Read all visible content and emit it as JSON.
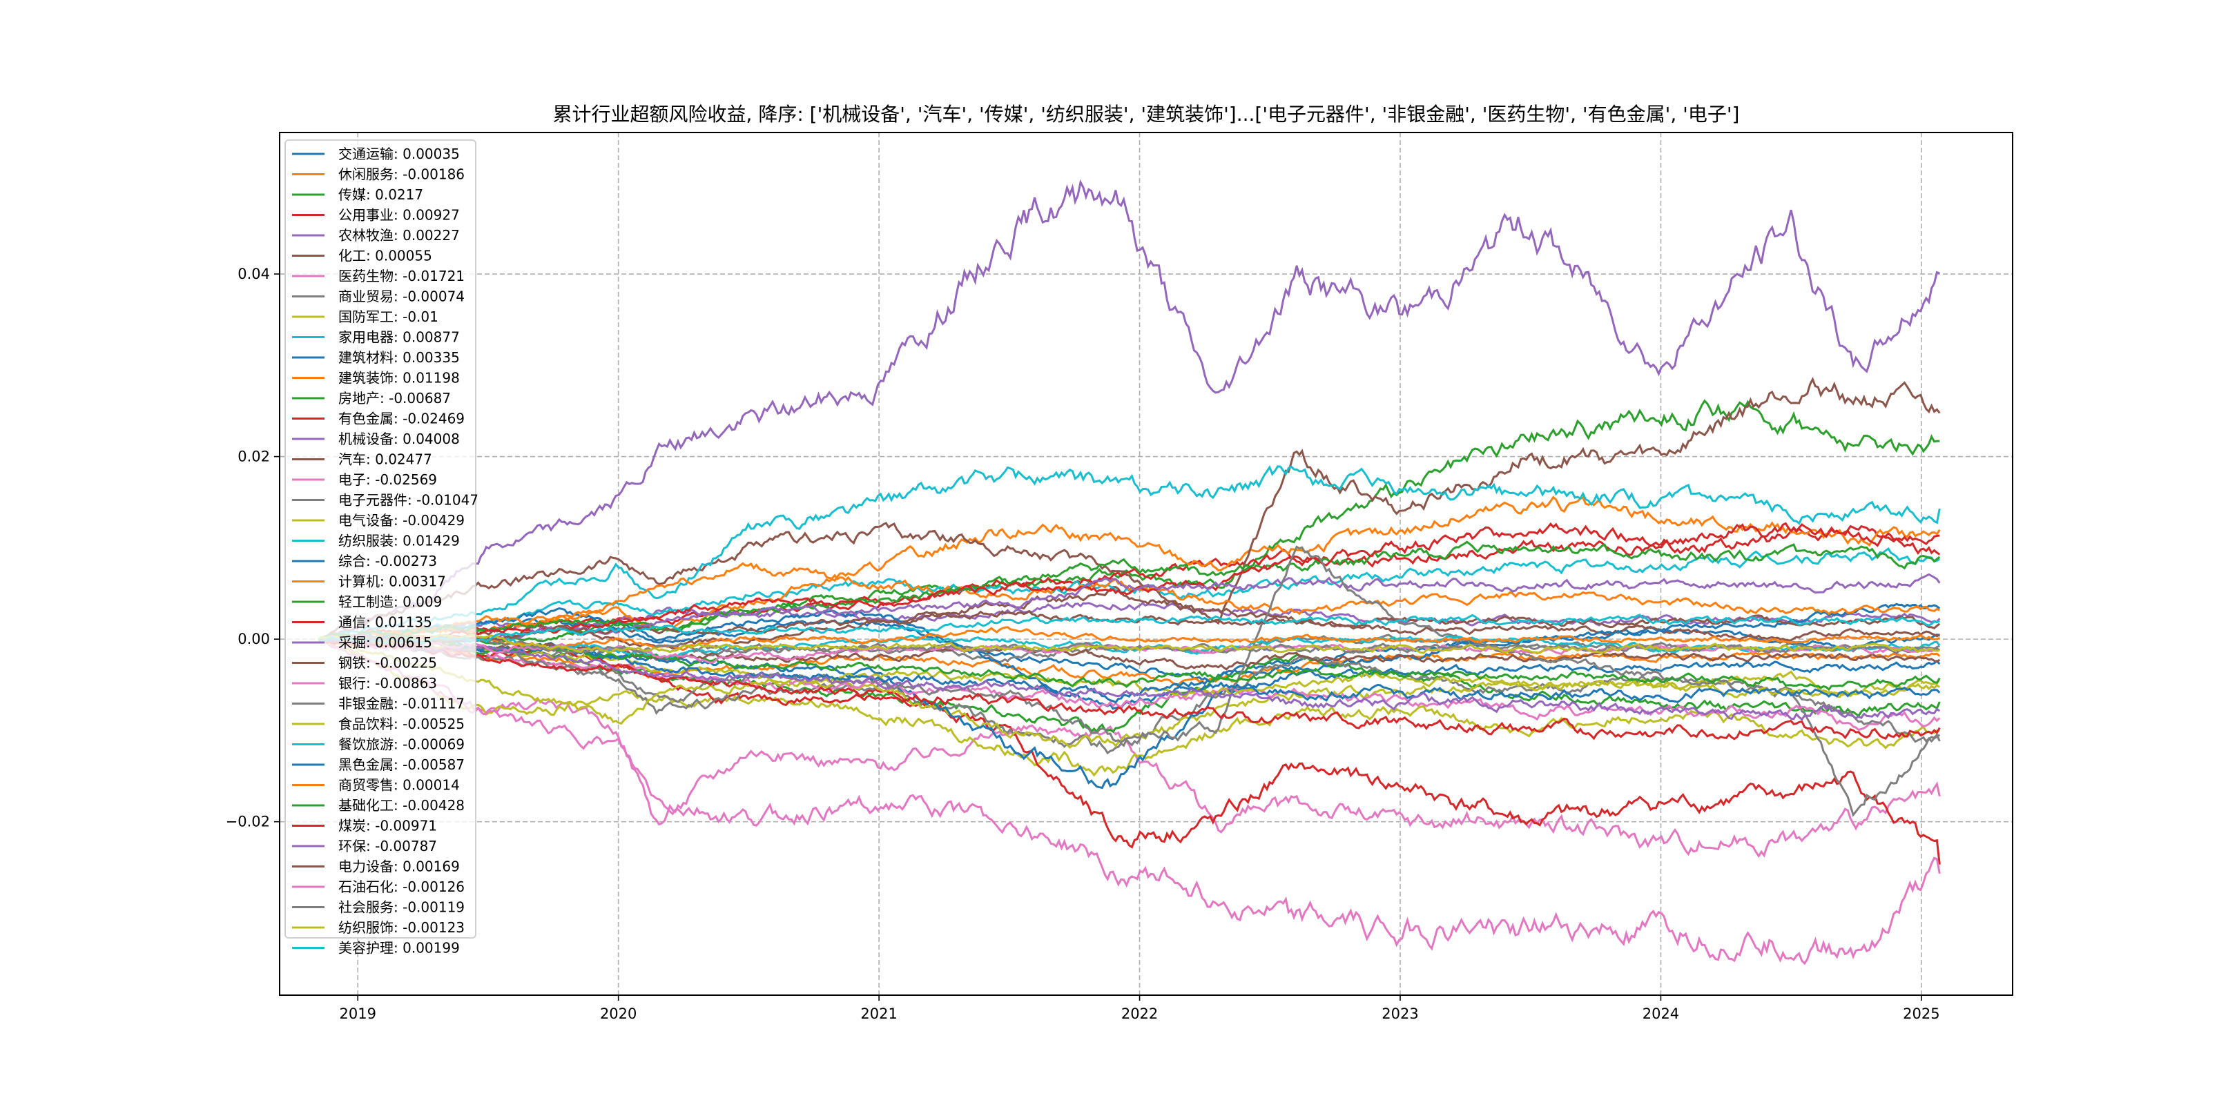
{
  "chart_data": {
    "type": "line",
    "title": "累计行业超额风险收益,  降序: ['机械设备', '汽车', '传媒', '纺织服装', '建筑装饰']...['电子元器件', '非银金融', '医药生物', '有色金属', '电子']",
    "xlabel": "",
    "ylabel": "",
    "xlim": [
      2018.7,
      2025.35
    ],
    "ylim": [
      -0.039,
      0.0555
    ],
    "xticks": [
      2019,
      2020,
      2021,
      2022,
      2023,
      2024,
      2025
    ],
    "xtick_labels": [
      "2019",
      "2020",
      "2021",
      "2022",
      "2023",
      "2024",
      "2025"
    ],
    "yticks": [
      -0.02,
      0.0,
      0.02,
      0.04
    ],
    "ytick_labels": [
      "−0.02",
      "0.00",
      "0.02",
      "0.04"
    ],
    "grid": true,
    "legend_position": "top-left",
    "x": [
      2018.85,
      2019.25,
      2019.5,
      2019.75,
      2020.0,
      2020.15,
      2020.5,
      2021.0,
      2021.5,
      2021.9,
      2022.3,
      2022.6,
      2023.0,
      2023.5,
      2024.0,
      2024.5,
      2024.74,
      2025.07
    ],
    "series": [
      {
        "name": "交通运输",
        "final": "0.00035",
        "color": "#1f77b4",
        "values": [
          0,
          0.001,
          0.001,
          0.002,
          0.001,
          0.0,
          0.001,
          0.002,
          -0.002,
          -0.003,
          -0.004,
          -0.002,
          -0.001,
          0.0,
          0.001,
          0.0,
          -0.001,
          0.00035
        ]
      },
      {
        "name": "休闲服务",
        "final": "-0.00186",
        "color": "#ff7f0e",
        "values": [
          0,
          -0.001,
          -0.002,
          -0.002,
          -0.003,
          -0.004,
          -0.003,
          -0.002,
          -0.003,
          -0.004,
          -0.005,
          -0.003,
          -0.002,
          -0.002,
          -0.002,
          -0.002,
          -0.002,
          -0.00186
        ]
      },
      {
        "name": "传媒",
        "final": "0.0217",
        "color": "#2ca02c",
        "values": [
          0,
          0,
          0,
          0,
          0.002,
          0.001,
          0.003,
          0.005,
          0.006,
          0.007,
          0.006,
          0.012,
          0.016,
          0.022,
          0.025,
          0.024,
          0.021,
          0.0217
        ]
      },
      {
        "name": "公用事业",
        "final": "0.00927",
        "color": "#d62728",
        "values": [
          0,
          0.001,
          0.001,
          0.002,
          0.002,
          0.002,
          0.003,
          0.004,
          0.006,
          0.007,
          0.008,
          0.009,
          0.009,
          0.01,
          0.01,
          0.011,
          0.012,
          0.00927
        ]
      },
      {
        "name": "农林牧渔",
        "final": "0.00227",
        "color": "#9467bd",
        "values": [
          0,
          0.001,
          0.002,
          0.001,
          0.002,
          0.003,
          0.003,
          0.002,
          0.003,
          0.004,
          0.003,
          0.003,
          0.002,
          0.002,
          0.002,
          0.002,
          0.003,
          0.00227
        ]
      },
      {
        "name": "化工",
        "final": "0.00055",
        "color": "#8c564b",
        "values": [
          0,
          0.0,
          0.001,
          0.001,
          0.0,
          -0.001,
          0.0,
          0.002,
          0.004,
          0.005,
          0.003,
          0.002,
          0.001,
          0.001,
          0.001,
          0.0,
          0.001,
          0.00055
        ]
      },
      {
        "name": "医药生物",
        "final": "-0.01721",
        "color": "#e377c2",
        "values": [
          0,
          -0.005,
          -0.008,
          -0.007,
          -0.01,
          -0.02,
          -0.012,
          -0.014,
          -0.01,
          -0.01,
          -0.02,
          -0.018,
          -0.02,
          -0.02,
          -0.022,
          -0.022,
          -0.02,
          -0.01721
        ]
      },
      {
        "name": "商业贸易",
        "final": "-0.00074",
        "color": "#7f7f7f",
        "values": [
          0,
          -0.001,
          -0.001,
          -0.002,
          -0.001,
          -0.002,
          -0.001,
          -0.001,
          -0.002,
          -0.001,
          -0.001,
          0.0,
          0.0,
          -0.001,
          -0.001,
          -0.001,
          -0.001,
          -0.00074
        ]
      },
      {
        "name": "国防军工",
        "final": "-0.01",
        "color": "#bcbd22",
        "values": [
          0,
          -0.005,
          -0.008,
          -0.008,
          -0.006,
          -0.007,
          -0.006,
          -0.008,
          -0.012,
          -0.014,
          -0.01,
          -0.008,
          -0.008,
          -0.01,
          -0.008,
          -0.01,
          -0.012,
          -0.01
        ]
      },
      {
        "name": "家用电器",
        "final": "0.00877",
        "color": "#17becf",
        "values": [
          0,
          0.001,
          0.002,
          0.003,
          0.004,
          0.003,
          0.005,
          0.006,
          0.005,
          0.006,
          0.005,
          0.006,
          0.007,
          0.008,
          0.008,
          0.009,
          0.009,
          0.00877
        ]
      },
      {
        "name": "建筑材料",
        "final": "0.00335",
        "color": "#1f77b4",
        "values": [
          0,
          0.001,
          0.002,
          0.003,
          0.002,
          0.0,
          0.002,
          0.003,
          -0.003,
          -0.008,
          -0.004,
          -0.003,
          -0.002,
          0.0,
          0.001,
          0.002,
          0.003,
          0.00335
        ]
      },
      {
        "name": "建筑装饰",
        "final": "0.01198",
        "color": "#ff7f0e",
        "values": [
          0,
          0.001,
          0.002,
          0.002,
          0.003,
          0.001,
          0.004,
          0.008,
          0.012,
          0.011,
          0.008,
          0.01,
          0.012,
          0.015,
          0.013,
          0.012,
          0.011,
          0.01198
        ]
      },
      {
        "name": "房地产",
        "final": "-0.00687",
        "color": "#2ca02c",
        "values": [
          0,
          0.0,
          -0.001,
          -0.002,
          -0.003,
          -0.004,
          -0.005,
          -0.006,
          -0.008,
          -0.01,
          -0.004,
          -0.002,
          -0.004,
          -0.006,
          -0.007,
          -0.008,
          -0.008,
          -0.00687
        ]
      },
      {
        "name": "有色金属",
        "final": "-0.02469",
        "color": "#d62728",
        "values": [
          0,
          0,
          -0.002,
          -0.001,
          -0.003,
          -0.005,
          -0.007,
          -0.006,
          -0.01,
          -0.022,
          -0.02,
          -0.014,
          -0.016,
          -0.02,
          -0.018,
          -0.017,
          -0.015,
          -0.02469
        ]
      },
      {
        "name": "机械设备",
        "final": "0.04008",
        "color": "#9467bd",
        "values": [
          0,
          0.004,
          0.01,
          0.012,
          0.015,
          0.02,
          0.024,
          0.028,
          0.045,
          0.05,
          0.026,
          0.04,
          0.035,
          0.046,
          0.03,
          0.046,
          0.029,
          0.04008
        ]
      },
      {
        "name": "汽车",
        "final": "0.02477",
        "color": "#8c564b",
        "values": [
          0,
          0.004,
          0.006,
          0.007,
          0.009,
          0.006,
          0.01,
          0.012,
          0.01,
          0.008,
          0.002,
          0.02,
          0.014,
          0.02,
          0.02,
          0.028,
          0.027,
          0.02477
        ]
      },
      {
        "name": "电子",
        "final": "-0.02569",
        "color": "#e377c2",
        "values": [
          0,
          -0.005,
          -0.008,
          -0.01,
          -0.012,
          -0.018,
          -0.02,
          -0.018,
          -0.02,
          -0.025,
          -0.028,
          -0.031,
          -0.032,
          -0.032,
          -0.032,
          -0.033,
          -0.034,
          -0.02569
        ]
      },
      {
        "name": "电子元器件",
        "final": "-0.01047",
        "color": "#7f7f7f",
        "values": [
          0,
          -0.001,
          -0.002,
          -0.003,
          -0.004,
          -0.008,
          -0.006,
          -0.005,
          -0.01,
          -0.012,
          -0.006,
          -0.002,
          -0.004,
          -0.006,
          -0.004,
          -0.006,
          -0.018,
          -0.01047
        ]
      },
      {
        "name": "电气设备",
        "final": "-0.00429",
        "color": "#bcbd22",
        "values": [
          0,
          -0.001,
          -0.001,
          -0.002,
          -0.002,
          -0.003,
          -0.004,
          -0.006,
          -0.01,
          -0.012,
          -0.008,
          -0.006,
          -0.006,
          -0.005,
          -0.005,
          -0.004,
          -0.006,
          -0.00429
        ]
      },
      {
        "name": "纺织服装",
        "final": "0.01429",
        "color": "#17becf",
        "values": [
          0,
          0.002,
          0.003,
          0.006,
          0.008,
          0.004,
          0.012,
          0.015,
          0.018,
          0.017,
          0.016,
          0.018,
          0.016,
          0.016,
          0.015,
          0.014,
          0.014,
          0.01429
        ]
      },
      {
        "name": "综合",
        "final": "-0.00273",
        "color": "#1f77b4",
        "values": [
          0,
          0.0,
          -0.001,
          -0.001,
          -0.002,
          -0.002,
          -0.003,
          -0.004,
          -0.012,
          -0.016,
          -0.006,
          -0.004,
          -0.004,
          -0.003,
          -0.003,
          -0.003,
          -0.003,
          -0.00273
        ]
      },
      {
        "name": "计算机",
        "final": "0.00317",
        "color": "#ff7f0e",
        "values": [
          0,
          0.001,
          0.001,
          0.002,
          0.004,
          0.006,
          0.008,
          0.006,
          0.005,
          0.006,
          0.004,
          0.003,
          0.004,
          0.005,
          0.004,
          0.003,
          0.003,
          0.00317
        ]
      },
      {
        "name": "轻工制造",
        "final": "0.009",
        "color": "#2ca02c",
        "values": [
          0,
          0.001,
          0.001,
          0.002,
          0.002,
          0.001,
          0.003,
          0.004,
          0.006,
          0.008,
          0.007,
          0.008,
          0.009,
          0.01,
          0.009,
          0.009,
          0.009,
          0.009
        ]
      },
      {
        "name": "通信",
        "final": "0.01135",
        "color": "#d62728",
        "values": [
          0,
          0.0,
          0.001,
          0.001,
          0.002,
          0.003,
          0.004,
          0.004,
          0.006,
          0.005,
          0.006,
          0.008,
          0.01,
          0.012,
          0.011,
          0.012,
          0.011,
          0.01135
        ]
      },
      {
        "name": "采掘",
        "final": "0.00615",
        "color": "#9467bd",
        "values": [
          0,
          0.0,
          0.0,
          0.001,
          0.001,
          0.002,
          0.003,
          0.003,
          0.004,
          0.006,
          0.006,
          0.006,
          0.006,
          0.006,
          0.006,
          0.006,
          0.006,
          0.00615
        ]
      },
      {
        "name": "钢铁",
        "final": "-0.00225",
        "color": "#8c564b",
        "values": [
          0,
          0.0,
          -0.001,
          -0.001,
          -0.001,
          -0.002,
          -0.002,
          -0.002,
          -0.001,
          -0.002,
          -0.003,
          -0.002,
          -0.002,
          -0.002,
          -0.002,
          -0.002,
          -0.002,
          -0.00225
        ]
      },
      {
        "name": "银行",
        "final": "-0.00863",
        "color": "#e377c2",
        "values": [
          0,
          -0.001,
          -0.002,
          -0.003,
          -0.003,
          -0.004,
          -0.005,
          -0.005,
          -0.006,
          -0.007,
          -0.006,
          -0.006,
          -0.007,
          -0.008,
          -0.008,
          -0.008,
          -0.009,
          -0.00863
        ]
      },
      {
        "name": "非银金融",
        "final": "-0.01117",
        "color": "#7f7f7f",
        "values": [
          0,
          0,
          -0.001,
          -0.003,
          -0.004,
          -0.007,
          -0.004,
          -0.005,
          -0.006,
          -0.011,
          -0.01,
          0.01,
          0.002,
          -0.002,
          -0.004,
          -0.006,
          -0.008,
          -0.01117
        ]
      },
      {
        "name": "食品饮料",
        "final": "-0.00525",
        "color": "#bcbd22",
        "values": [
          0,
          -0.003,
          -0.005,
          -0.007,
          -0.009,
          -0.006,
          -0.005,
          -0.004,
          -0.004,
          -0.005,
          -0.006,
          -0.005,
          -0.004,
          -0.005,
          -0.005,
          -0.006,
          -0.006,
          -0.00525
        ]
      },
      {
        "name": "餐饮旅游",
        "final": "-0.00069",
        "color": "#17becf",
        "values": [
          0,
          0.0,
          0.0,
          -0.001,
          -0.001,
          -0.002,
          -0.001,
          0.0,
          0.0,
          -0.001,
          -0.001,
          0.0,
          0.0,
          0.0,
          -0.001,
          -0.001,
          -0.001,
          -0.00069
        ]
      },
      {
        "name": "黑色金属",
        "final": "-0.00587",
        "color": "#1f77b4",
        "values": [
          0,
          0.0,
          -0.001,
          -0.001,
          -0.002,
          -0.003,
          -0.004,
          -0.004,
          -0.005,
          -0.006,
          -0.005,
          -0.006,
          -0.006,
          -0.006,
          -0.006,
          -0.006,
          -0.006,
          -0.00587
        ]
      },
      {
        "name": "商贸零售",
        "final": "0.00014",
        "color": "#ff7f0e",
        "values": [
          0,
          0.0,
          0.0,
          -0.001,
          0.0,
          -0.001,
          0.0,
          0.0,
          0.001,
          0.0,
          0.0,
          0.0,
          0.0,
          0.0,
          0.0,
          0.0,
          0.0,
          0.00014
        ]
      },
      {
        "name": "基础化工",
        "final": "-0.00428",
        "color": "#2ca02c",
        "values": [
          0,
          0.0,
          -0.001,
          -0.001,
          -0.002,
          -0.002,
          -0.003,
          -0.003,
          -0.004,
          -0.005,
          -0.004,
          -0.004,
          -0.004,
          -0.004,
          -0.004,
          -0.005,
          -0.005,
          -0.00428
        ]
      },
      {
        "name": "煤炭",
        "final": "-0.00971",
        "color": "#d62728",
        "values": [
          0,
          -0.001,
          -0.002,
          -0.003,
          -0.003,
          -0.004,
          -0.005,
          -0.006,
          -0.007,
          -0.008,
          -0.008,
          -0.009,
          -0.009,
          -0.01,
          -0.01,
          -0.01,
          -0.01,
          -0.00971
        ]
      },
      {
        "name": "环保",
        "final": "-0.00787",
        "color": "#9467bd",
        "values": [
          0,
          -0.001,
          -0.001,
          -0.002,
          -0.003,
          -0.004,
          -0.004,
          -0.005,
          -0.005,
          -0.006,
          -0.006,
          -0.007,
          -0.007,
          -0.007,
          -0.008,
          -0.008,
          -0.008,
          -0.00787
        ]
      },
      {
        "name": "电力设备",
        "final": "0.00169",
        "color": "#8c564b",
        "values": [
          0,
          0.0,
          0.0,
          0.001,
          0.001,
          0.001,
          0.001,
          0.002,
          0.003,
          0.002,
          0.002,
          0.002,
          0.002,
          0.002,
          0.002,
          0.002,
          0.002,
          0.00169
        ]
      },
      {
        "name": "石油石化",
        "final": "-0.00126",
        "color": "#e377c2",
        "values": [
          0,
          0.0,
          -0.001,
          -0.001,
          -0.001,
          -0.002,
          -0.002,
          -0.001,
          -0.001,
          -0.001,
          -0.001,
          -0.001,
          -0.001,
          -0.001,
          -0.001,
          -0.001,
          -0.001,
          -0.00126
        ]
      },
      {
        "name": "社会服务",
        "final": "-0.00119",
        "color": "#7f7f7f",
        "values": [
          0,
          0.0,
          0.0,
          -0.001,
          -0.001,
          -0.001,
          -0.001,
          -0.001,
          -0.001,
          -0.001,
          -0.001,
          -0.001,
          -0.001,
          -0.001,
          -0.001,
          -0.001,
          -0.001,
          -0.00119
        ]
      },
      {
        "name": "纺织服饰",
        "final": "-0.00123",
        "color": "#bcbd22",
        "values": [
          0,
          0.0,
          0.0,
          -0.001,
          -0.001,
          -0.001,
          -0.001,
          -0.001,
          -0.001,
          -0.001,
          -0.001,
          -0.001,
          -0.001,
          -0.001,
          -0.001,
          -0.001,
          -0.001,
          -0.00123
        ]
      },
      {
        "name": "美容护理",
        "final": "0.00199",
        "color": "#17becf",
        "values": [
          0,
          0.0,
          0.0,
          0.001,
          0.001,
          0.001,
          0.001,
          0.001,
          0.002,
          0.002,
          0.002,
          0.002,
          0.002,
          0.002,
          0.002,
          0.002,
          0.002,
          0.00199
        ]
      }
    ]
  }
}
